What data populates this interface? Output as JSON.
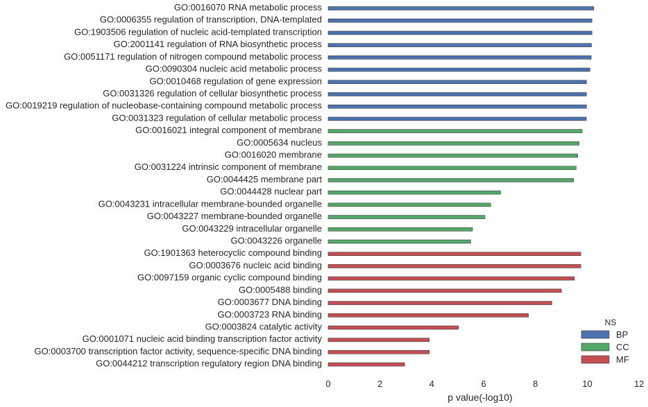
{
  "chart_data": {
    "type": "bar",
    "orientation": "horizontal",
    "xlabel": "p value(-log10)",
    "xlim": [
      0,
      12
    ],
    "xticks": [
      0,
      2,
      4,
      6,
      8,
      10,
      12
    ],
    "grid": false,
    "legend": {
      "title": "NS",
      "placement": "bottom-right",
      "entries": [
        {
          "name": "BP",
          "color": "#4c72b0"
        },
        {
          "name": "CC",
          "color": "#55a868"
        },
        {
          "name": "MF",
          "color": "#c44e52"
        }
      ]
    },
    "categories": [
      {
        "label": "GO:0016070 RNA metabolic process",
        "ns": "BP",
        "value": 10.25
      },
      {
        "label": "GO:0006355 regulation of transcription, DNA-templated",
        "ns": "BP",
        "value": 10.18
      },
      {
        "label": "GO:1903506 regulation of nucleic acid-templated transcription",
        "ns": "BP",
        "value": 10.18
      },
      {
        "label": "GO:2001141 regulation of RNA biosynthetic process",
        "ns": "BP",
        "value": 10.16
      },
      {
        "label": "GO:0051171 regulation of nitrogen compound metabolic process",
        "ns": "BP",
        "value": 10.15
      },
      {
        "label": "GO:0090304 nucleic acid metabolic process",
        "ns": "BP",
        "value": 10.1
      },
      {
        "label": "GO:0010468 regulation of gene expression",
        "ns": "BP",
        "value": 9.97
      },
      {
        "label": "GO:0031326 regulation of cellular biosynthetic process",
        "ns": "BP",
        "value": 9.97
      },
      {
        "label": "GO:0019219 regulation of nucleobase-containing compound metabolic process",
        "ns": "BP",
        "value": 9.97
      },
      {
        "label": "GO:0031323 regulation of cellular metabolic process",
        "ns": "BP",
        "value": 9.96
      },
      {
        "label": "GO:0016021 integral component of membrane",
        "ns": "CC",
        "value": 9.8
      },
      {
        "label": "GO:0005634 nucleus",
        "ns": "CC",
        "value": 9.68
      },
      {
        "label": "GO:0016020 membrane",
        "ns": "CC",
        "value": 9.63
      },
      {
        "label": "GO:0031224 intrinsic component of membrane",
        "ns": "CC",
        "value": 9.57
      },
      {
        "label": "GO:0044425 membrane part",
        "ns": "CC",
        "value": 9.47
      },
      {
        "label": "GO:0044428 nuclear part",
        "ns": "CC",
        "value": 6.65
      },
      {
        "label": "GO:0043231 intracellular membrane-bounded organelle",
        "ns": "CC",
        "value": 6.27
      },
      {
        "label": "GO:0043227 membrane-bounded organelle",
        "ns": "CC",
        "value": 6.05
      },
      {
        "label": "GO:0043229 intracellular organelle",
        "ns": "CC",
        "value": 5.57
      },
      {
        "label": "GO:0043226 organelle",
        "ns": "CC",
        "value": 5.5
      },
      {
        "label": "GO:1901363 heterocyclic compound binding",
        "ns": "MF",
        "value": 9.75
      },
      {
        "label": "GO:0003676 nucleic acid binding",
        "ns": "MF",
        "value": 9.75
      },
      {
        "label": "GO:0097159 organic cyclic compound binding",
        "ns": "MF",
        "value": 9.5
      },
      {
        "label": "GO:0005488 binding",
        "ns": "MF",
        "value": 9.0
      },
      {
        "label": "GO:0003677 DNA binding",
        "ns": "MF",
        "value": 8.63
      },
      {
        "label": "GO:0003723 RNA binding",
        "ns": "MF",
        "value": 7.73
      },
      {
        "label": "GO:0003824 catalytic activity",
        "ns": "MF",
        "value": 5.03
      },
      {
        "label": "GO:0001071 nucleic acid binding transcription factor activity",
        "ns": "MF",
        "value": 3.9
      },
      {
        "label": "GO:0003700 transcription factor activity, sequence-specific DNA binding",
        "ns": "MF",
        "value": 3.9
      },
      {
        "label": "GO:0044212 transcription regulatory region DNA binding",
        "ns": "MF",
        "value": 2.95
      }
    ]
  }
}
